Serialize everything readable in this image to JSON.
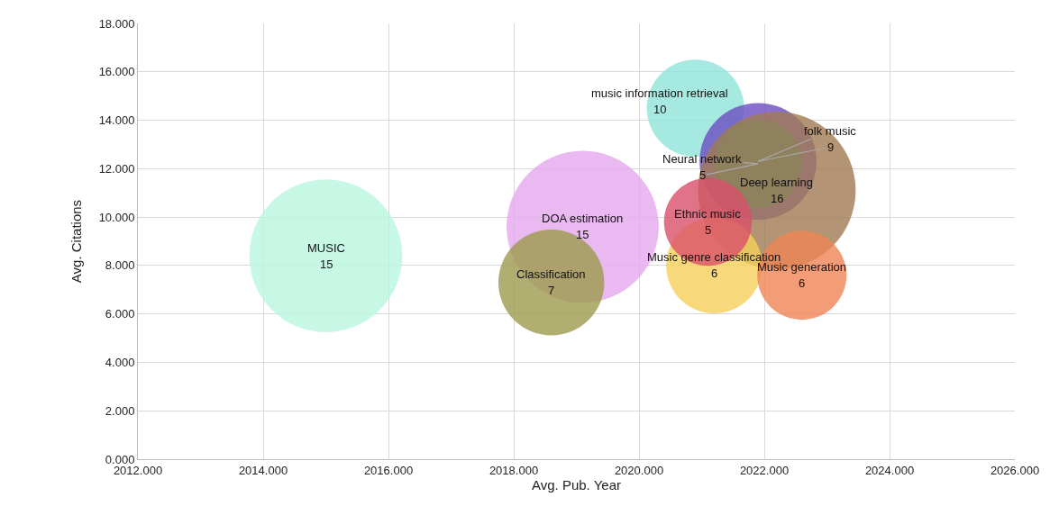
{
  "chart_data": {
    "type": "bubble",
    "xlabel": "Avg. Pub. Year",
    "ylabel": "Avg. Citations",
    "xlim": [
      2012,
      2026
    ],
    "xticks": [
      {
        "value": 2012,
        "label": "2012.000"
      },
      {
        "value": 2014,
        "label": "2014.000"
      },
      {
        "value": 2016,
        "label": "2016.000"
      },
      {
        "value": 2018,
        "label": "2018.000"
      },
      {
        "value": 2020,
        "label": "2020.000"
      },
      {
        "value": 2022,
        "label": "2022.000"
      },
      {
        "value": 2024,
        "label": "2024.000"
      },
      {
        "value": 2026,
        "label": "2026.000"
      }
    ],
    "ylim": [
      0,
      18
    ],
    "yticks": [
      {
        "value": 0,
        "label": "0.000"
      },
      {
        "value": 2,
        "label": "2.000"
      },
      {
        "value": 4,
        "label": "4.000"
      },
      {
        "value": 6,
        "label": "6.000"
      },
      {
        "value": 8,
        "label": "8.000"
      },
      {
        "value": 10,
        "label": "10.000"
      },
      {
        "value": 12,
        "label": "12.000"
      },
      {
        "value": 14,
        "label": "14.000"
      },
      {
        "value": 16,
        "label": "16.000"
      },
      {
        "value": 18,
        "label": "18.000"
      }
    ],
    "grid": true,
    "series": [
      {
        "name": "MUSIC",
        "color": "#b9f5df",
        "x": [
          2015.0
        ],
        "values": [
          8.4
        ],
        "sizes": [
          0.94
        ]
      },
      {
        "name": "DOA estimation",
        "color": "#e6a8ee",
        "x": [
          2019.1
        ],
        "values": [
          9.6
        ],
        "sizes": [
          0.93
        ]
      },
      {
        "name": "Classification",
        "color": "#9c9a4c",
        "x": [
          2018.6
        ],
        "values": [
          7.3
        ],
        "sizes": [
          0.45
        ]
      },
      {
        "name": "music information retrieval",
        "color": "#8fe3d9",
        "x": [
          2020.9
        ],
        "values": [
          14.5
        ],
        "sizes": [
          0.38
        ]
      },
      {
        "name": "folk music",
        "color": "#6c4cc0",
        "x": [
          2021.9
        ],
        "values": [
          12.3
        ],
        "sizes": [
          0.55
        ]
      },
      {
        "name": "Neural network",
        "color": "#3ea67c",
        "x": [
          2021.9
        ],
        "values": [
          12.2
        ],
        "sizes": [
          0.31
        ]
      },
      {
        "name": "Deep learning",
        "color": "#a07a52",
        "x": [
          2022.2
        ],
        "values": [
          11.1
        ],
        "sizes": [
          1.0
        ]
      },
      {
        "name": "Music genre classification",
        "color": "#f5cf5a",
        "x": [
          2021.2
        ],
        "values": [
          8.0
        ],
        "sizes": [
          0.37
        ]
      },
      {
        "name": "Ethnic music",
        "color": "#d9506a",
        "x": [
          2021.1
        ],
        "values": [
          9.8
        ],
        "sizes": [
          0.31
        ]
      },
      {
        "name": "Music generation",
        "color": "#ef8455",
        "x": [
          2022.6
        ],
        "values": [
          7.6
        ],
        "sizes": [
          0.32
        ]
      }
    ],
    "annotations": [
      {
        "text": "15",
        "x": 2015.0,
        "y": 8.4
      },
      {
        "text": "15",
        "x": 2019.1,
        "y": 9.6
      },
      {
        "text": "7",
        "x": 2018.6,
        "y": 7.3
      },
      {
        "text": "10",
        "x": 2020.9,
        "y": 14.5
      },
      {
        "text": "9",
        "x": 2021.9,
        "y": 12.3
      },
      {
        "text": "5",
        "x": 2021.9,
        "y": 12.2
      },
      {
        "text": "16",
        "x": 2022.2,
        "y": 11.1
      },
      {
        "text": "6",
        "x": 2021.2,
        "y": 8.0
      },
      {
        "text": "5",
        "x": 2021.1,
        "y": 9.8
      },
      {
        "text": "6",
        "x": 2022.6,
        "y": 7.6
      }
    ]
  }
}
